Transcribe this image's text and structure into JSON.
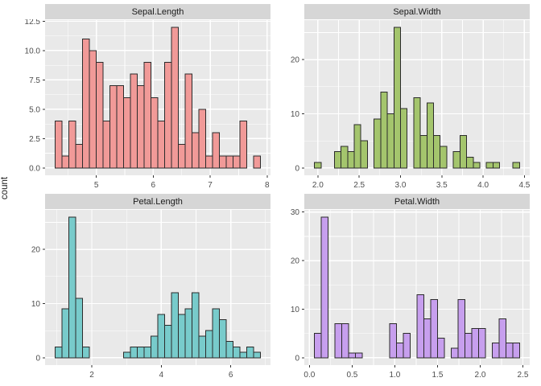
{
  "ylabel": "count",
  "figure": {
    "background": "#FFFFFF",
    "panel_bg": "#E9E9E9",
    "grid_color": "#FFFFFF",
    "strip_bg": "#D6D6D6",
    "strip_text_color": "#1A1A1A",
    "tick_label_color": "#4D4D4D",
    "tick_mark_color": "#333333",
    "bar_stroke": "#2B2B2B"
  },
  "chart_data": {
    "type": "bar",
    "subtype": "faceted-histograms",
    "legend": "none",
    "grid": "on",
    "facets": [
      {
        "label": "Sepal.Length",
        "fill": "#F19A98",
        "bins": {
          "start": 4.28,
          "width": 0.12,
          "counts": [
            4,
            1,
            4,
            2,
            11,
            10,
            9,
            4,
            7,
            7,
            6,
            8,
            7,
            9,
            6,
            4,
            9,
            12,
            2,
            8,
            3,
            5,
            1,
            3,
            1,
            1,
            1,
            4,
            0,
            1
          ]
        },
        "x": {
          "view": [
            4.1,
            8.06
          ],
          "major": [
            5,
            6,
            7,
            8
          ],
          "labels": [
            "5",
            "6",
            "7",
            "8"
          ],
          "minor": [
            4.5,
            5.5,
            6.5,
            7.5
          ]
        },
        "y": {
          "view": [
            -0.63,
            12.6
          ],
          "major": [
            0,
            2.5,
            5,
            7.5,
            10,
            12.5
          ],
          "labels": [
            "0.0",
            "2.5",
            "5.0",
            "7.5",
            "10.0",
            "12.5"
          ],
          "minor": [
            1.25,
            3.75,
            6.25,
            8.75,
            11.25
          ]
        }
      },
      {
        "label": "Sepal.Width",
        "fill": "#A4C56D",
        "bins": {
          "start": 1.96,
          "width": 0.08,
          "counts": [
            1,
            0,
            0,
            3,
            4,
            3,
            8,
            5,
            0,
            9,
            14,
            10,
            26,
            11,
            0,
            13,
            6,
            12,
            6,
            4,
            0,
            3,
            6,
            2,
            1,
            0,
            1,
            1,
            0,
            0,
            1
          ]
        },
        "x": {
          "view": [
            1.836,
            4.564
          ],
          "major": [
            2.0,
            2.5,
            3.0,
            3.5,
            4.0,
            4.5
          ],
          "labels": [
            "2.0",
            "2.5",
            "3.0",
            "3.5",
            "4.0",
            "4.5"
          ],
          "minor": [
            2.25,
            2.75,
            3.25,
            3.75,
            4.25
          ]
        },
        "y": {
          "view": [
            -1.365,
            27.3
          ],
          "major": [
            0,
            10,
            20
          ],
          "labels": [
            "0",
            "10",
            "20"
          ],
          "minor": [
            5,
            15,
            25
          ]
        }
      },
      {
        "label": "Petal.Length",
        "fill": "#78CBCB",
        "bins": {
          "start": 0.95,
          "width": 0.19667,
          "counts": [
            2,
            9,
            26,
            11,
            2,
            0,
            0,
            0,
            0,
            0,
            1,
            2,
            2,
            2,
            4,
            8,
            6,
            12,
            8,
            9,
            12,
            4,
            5,
            9,
            7,
            3,
            2,
            1,
            2,
            1
          ]
        },
        "x": {
          "view": [
            0.655,
            7.145
          ],
          "major": [
            2,
            4,
            6
          ],
          "labels": [
            "2",
            "4",
            "6"
          ],
          "minor": [
            1,
            3,
            5,
            7
          ]
        },
        "y": {
          "view": [
            -1.365,
            27.3
          ],
          "major": [
            0,
            10,
            20
          ],
          "labels": [
            "0",
            "10",
            "20"
          ],
          "minor": [
            5,
            15,
            25
          ]
        }
      },
      {
        "label": "Petal.Width",
        "fill": "#C79FEE",
        "bins": {
          "start": 0.06,
          "width": 0.08,
          "counts": [
            5,
            29,
            0,
            7,
            7,
            1,
            1,
            0,
            0,
            0,
            0,
            7,
            3,
            5,
            0,
            13,
            8,
            12,
            4,
            0,
            2,
            12,
            5,
            6,
            6,
            0,
            3,
            8,
            3,
            3
          ]
        },
        "x": {
          "view": [
            -0.06,
            2.58
          ],
          "major": [
            0.0,
            0.5,
            1.0,
            1.5,
            2.0,
            2.5
          ],
          "labels": [
            "0.0",
            "0.5",
            "1.0",
            "1.5",
            "2.0",
            "2.5"
          ],
          "minor": [
            0.25,
            0.75,
            1.25,
            1.75,
            2.25
          ]
        },
        "y": {
          "view": [
            -1.52,
            30.45
          ],
          "major": [
            0,
            10,
            20,
            30
          ],
          "labels": [
            "0",
            "10",
            "20",
            "30"
          ],
          "minor": [
            5,
            15,
            25
          ]
        }
      }
    ]
  }
}
